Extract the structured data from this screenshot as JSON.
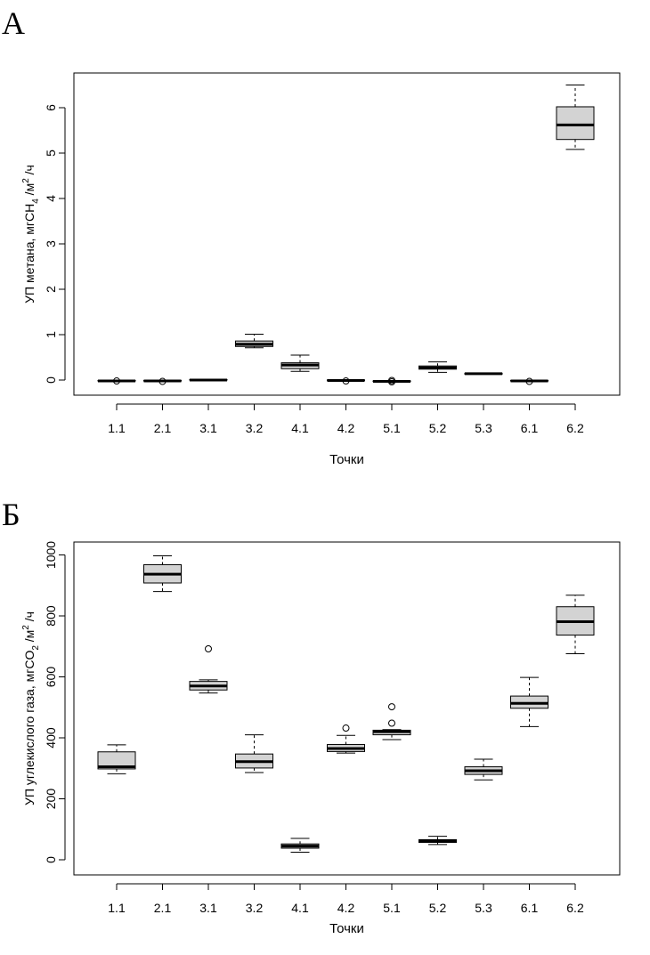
{
  "panels": {
    "a": {
      "letter": "А"
    },
    "b": {
      "letter": "Б"
    }
  },
  "chart_data": [
    {
      "type": "box",
      "xlabel": "Точки",
      "ylabel": {
        "main": "УП метана, мгCH",
        "sub1": "4",
        "mid": " /м",
        "sup": "2",
        "end": " /ч"
      },
      "ylim": [
        -0.1,
        6.7
      ],
      "yticks": [
        0,
        1,
        2,
        3,
        4,
        5,
        6
      ],
      "ytick_labels": [
        "0",
        "1",
        "2",
        "3",
        "4",
        "5",
        "6"
      ],
      "grid": false,
      "categories": [
        "1.1",
        "2.1",
        "3.1",
        "3.2",
        "4.1",
        "4.2",
        "5.1",
        "5.2",
        "5.3",
        "6.1",
        "6.2"
      ],
      "boxes": [
        {
          "min": -0.02,
          "q1": -0.02,
          "median": -0.02,
          "q3": -0.01,
          "max": -0.01,
          "outliers": [
            -0.02
          ]
        },
        {
          "min": -0.02,
          "q1": -0.02,
          "median": -0.02,
          "q3": -0.01,
          "max": -0.01,
          "outliers": [
            -0.03
          ]
        },
        {
          "min": 0.0,
          "q1": 0.0,
          "median": 0.0,
          "q3": 0.01,
          "max": 0.01,
          "outliers": []
        },
        {
          "min": 0.71,
          "q1": 0.74,
          "median": 0.79,
          "q3": 0.86,
          "max": 1.01,
          "outliers": []
        },
        {
          "min": 0.19,
          "q1": 0.25,
          "median": 0.33,
          "q3": 0.38,
          "max": 0.55,
          "outliers": []
        },
        {
          "min": -0.01,
          "q1": -0.01,
          "median": -0.01,
          "q3": 0.0,
          "max": 0.0,
          "outliers": [
            -0.02
          ]
        },
        {
          "min": -0.04,
          "q1": -0.03,
          "median": -0.03,
          "q3": -0.02,
          "max": -0.01,
          "outliers": [
            -0.04,
            -0.01
          ]
        },
        {
          "min": 0.17,
          "q1": 0.24,
          "median": 0.27,
          "q3": 0.31,
          "max": 0.4,
          "outliers": []
        },
        {
          "min": 0.13,
          "q1": 0.13,
          "median": 0.14,
          "q3": 0.15,
          "max": 0.15,
          "outliers": []
        },
        {
          "min": -0.02,
          "q1": -0.02,
          "median": -0.02,
          "q3": -0.01,
          "max": -0.01,
          "outliers": [
            -0.03
          ]
        },
        {
          "min": 5.08,
          "q1": 5.3,
          "median": 5.62,
          "q3": 6.02,
          "max": 6.5,
          "outliers": []
        }
      ]
    },
    {
      "type": "box",
      "xlabel": "Точки",
      "ylabel": {
        "main": "УП углекислого газа, мгCO",
        "sub1": "2",
        "mid": " /м",
        "sup": "2",
        "end": " /ч"
      },
      "ylim": [
        -5,
        1020
      ],
      "yticks": [
        0,
        200,
        400,
        600,
        800,
        1000
      ],
      "ytick_labels": [
        "0",
        "200",
        "400",
        "600",
        "800",
        "1000"
      ],
      "grid": false,
      "categories": [
        "1.1",
        "2.1",
        "3.1",
        "3.2",
        "4.1",
        "4.2",
        "5.1",
        "5.2",
        "5.3",
        "6.1",
        "6.2"
      ],
      "boxes": [
        {
          "min": 282,
          "q1": 298,
          "median": 305,
          "q3": 354,
          "max": 377,
          "outliers": []
        },
        {
          "min": 880,
          "q1": 908,
          "median": 937,
          "q3": 968,
          "max": 997,
          "outliers": []
        },
        {
          "min": 547,
          "q1": 557,
          "median": 570,
          "q3": 585,
          "max": 590,
          "outliers": [
            692
          ]
        },
        {
          "min": 286,
          "q1": 301,
          "median": 322,
          "q3": 347,
          "max": 410,
          "outliers": []
        },
        {
          "min": 25,
          "q1": 38,
          "median": 45,
          "q3": 52,
          "max": 70,
          "outliers": []
        },
        {
          "min": 350,
          "q1": 355,
          "median": 365,
          "q3": 378,
          "max": 408,
          "outliers": [
            432
          ]
        },
        {
          "min": 394,
          "q1": 410,
          "median": 420,
          "q3": 425,
          "max": 427,
          "outliers": [
            448,
            502
          ]
        },
        {
          "min": 50,
          "q1": 57,
          "median": 62,
          "q3": 66,
          "max": 77,
          "outliers": []
        },
        {
          "min": 262,
          "q1": 280,
          "median": 292,
          "q3": 305,
          "max": 330,
          "outliers": []
        },
        {
          "min": 437,
          "q1": 497,
          "median": 513,
          "q3": 537,
          "max": 598,
          "outliers": []
        },
        {
          "min": 676,
          "q1": 737,
          "median": 781,
          "q3": 830,
          "max": 868,
          "outliers": []
        }
      ]
    }
  ]
}
